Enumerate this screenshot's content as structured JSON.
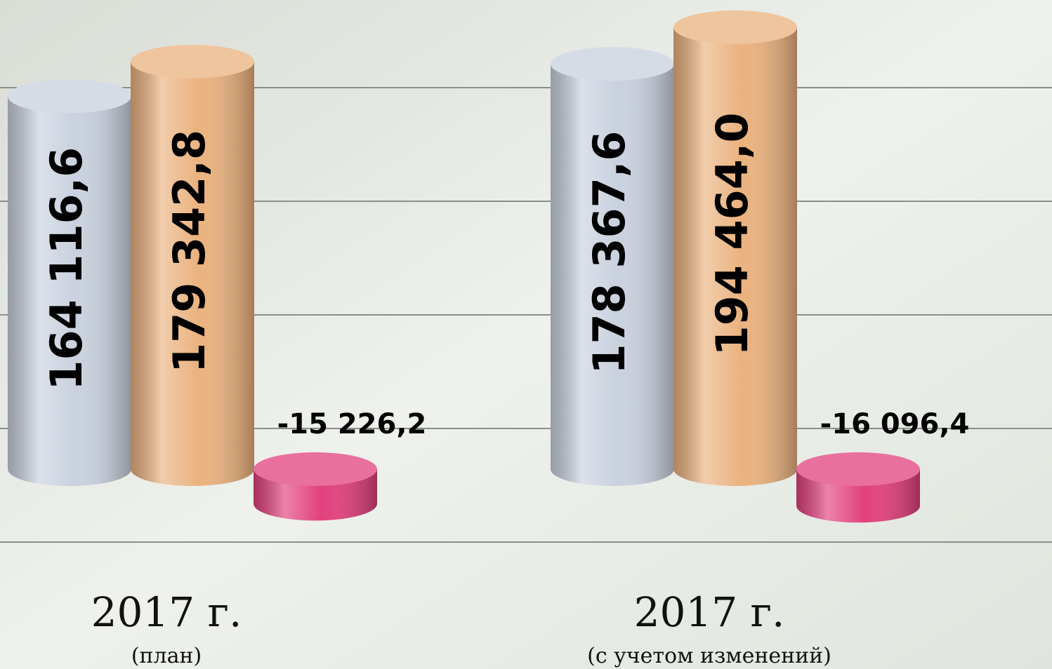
{
  "chart_data": {
    "type": "bar3d",
    "categories": [
      "2017 г.",
      "2017 г."
    ],
    "category_subtitles": [
      "(план)",
      "(с учетом изменений)"
    ],
    "series": [
      {
        "color": "#c9d1de",
        "values": [
          164116.6,
          178367.6
        ],
        "value_labels": [
          "164 116,6",
          "178 367,6"
        ]
      },
      {
        "color": "#eab27e",
        "values": [
          179342.8,
          194464.0
        ],
        "value_labels": [
          "179 342,8",
          "194 464,0"
        ]
      },
      {
        "color": "#e2407c",
        "values": [
          -15226.2,
          -16096.4
        ],
        "value_labels": [
          "-15 226,2",
          "-16 096,4"
        ]
      }
    ],
    "ylim": [
      -50000,
      200000
    ],
    "yticks": [
      -50000,
      0,
      50000,
      100000,
      150000,
      200000
    ],
    "grid": true
  }
}
